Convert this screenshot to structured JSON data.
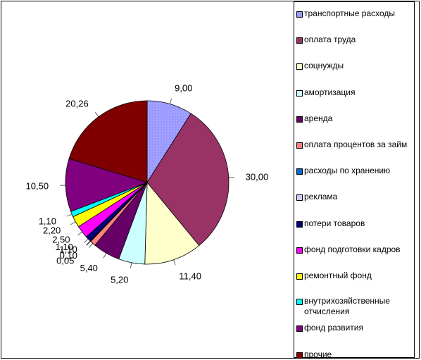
{
  "chart_data": {
    "type": "pie",
    "title": "",
    "categories": [
      "транспортные расходы",
      "оплата труда",
      "соцнужды",
      "амортизация",
      "аренда",
      "оплата процентов за займ",
      "расходы по хранению",
      "реклама",
      "потери товаров",
      "фонд подготовки кадров",
      "ремонтный фонд",
      "внутрихозяйственные отчисления",
      "фонд развития",
      "прочие"
    ],
    "values": [
      9.0,
      30.0,
      11.4,
      5.2,
      5.4,
      1.1,
      0.1,
      0.05,
      1.1,
      2.5,
      2.2,
      1.1,
      10.5,
      20.26
    ],
    "value_labels": [
      "9,00",
      "30,00",
      "11,40",
      "5,20",
      "5,40",
      "1,10",
      "0,10",
      "0,05",
      "1,10",
      "2,50",
      "2,20",
      "1,10",
      "10,50",
      "20,26"
    ],
    "colors": [
      "#9999FF",
      "#993366",
      "#FFFFCC",
      "#CCFFFF",
      "#660066",
      "#FF8080",
      "#0066CC",
      "#CCCCFF",
      "#000080",
      "#FF00FF",
      "#FFFF00",
      "#00FFFF",
      "#800080",
      "#800000"
    ],
    "legend_position": "right",
    "grid": false
  }
}
